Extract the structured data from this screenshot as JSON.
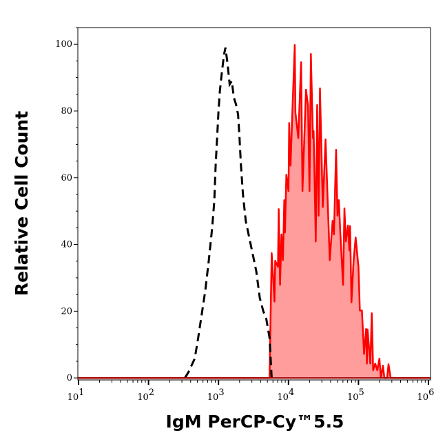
{
  "chart_data": {
    "type": "area",
    "title": "",
    "xlabel": "IgM PerCP-Cy™5.5",
    "ylabel": "Relative Cell Count",
    "x_scale": "log",
    "xlim_log10": [
      0.99,
      6.03
    ],
    "ylim": [
      -0.6,
      105
    ],
    "x_ticks": [
      {
        "base": "10",
        "exp": "1",
        "value": 10
      },
      {
        "base": "10",
        "exp": "2",
        "value": 100
      },
      {
        "base": "10",
        "exp": "3",
        "value": 1000
      },
      {
        "base": "10",
        "exp": "4",
        "value": 10000
      },
      {
        "base": "10",
        "exp": "5",
        "value": 100000
      },
      {
        "base": "10",
        "exp": "6",
        "value": 1000000
      }
    ],
    "y_ticks": [
      "0",
      "20",
      "40",
      "60",
      "80",
      "100"
    ],
    "grid": false,
    "legend": "none",
    "series": [
      {
        "style": "dashed line, unfilled",
        "color": "#000000",
        "log10_x": [
          2.52,
          2.57,
          2.66,
          2.71,
          2.76,
          2.81,
          2.86,
          2.91,
          2.94,
          2.96,
          2.98,
          3.0,
          3.02,
          3.05,
          3.08,
          3.1,
          3.13,
          3.16,
          3.19,
          3.22,
          3.25,
          3.28,
          3.3,
          3.32,
          3.35,
          3.39,
          3.44,
          3.49,
          3.54,
          3.59,
          3.64,
          3.68,
          3.73,
          3.76
        ],
        "y": [
          0,
          1.7,
          5.8,
          12,
          19,
          26,
          35,
          45,
          53,
          64,
          72,
          80,
          86,
          92,
          97,
          99,
          94,
          88,
          89,
          84,
          82,
          79,
          72,
          64,
          55,
          47,
          42,
          37,
          32,
          24,
          20,
          18,
          12,
          0
        ]
      },
      {
        "style": "solid line, filled",
        "color": "#ff0000",
        "fill": "#ff9c9c",
        "log10_x": [
          0.99,
          3.73,
          3.76,
          3.8,
          3.81,
          3.85,
          3.86,
          3.88,
          3.9,
          3.92,
          3.94,
          3.95,
          3.97,
          4.0,
          4.01,
          4.03,
          4.05,
          4.09,
          4.1,
          4.14,
          4.18,
          4.2,
          4.25,
          4.28,
          4.3,
          4.32,
          4.35,
          4.36,
          4.39,
          4.41,
          4.43,
          4.45,
          4.49,
          4.53,
          4.59,
          4.63,
          4.65,
          4.68,
          4.7,
          4.72,
          4.74,
          4.78,
          4.8,
          4.82,
          4.85,
          4.87,
          4.88,
          4.9,
          4.93,
          4.96,
          5.0,
          5.02,
          5.05,
          5.08,
          5.11,
          5.12,
          5.13,
          5.17,
          5.19,
          5.21,
          5.24,
          5.27,
          5.3,
          5.32,
          5.35,
          5.37,
          5.41,
          5.43,
          5.46,
          6.03
        ],
        "y": [
          0,
          0,
          37.4,
          22.9,
          35.1,
          33.3,
          50.6,
          27.9,
          43.0,
          35.3,
          53.3,
          43.6,
          60.9,
          56.0,
          76.4,
          63.6,
          76.7,
          99.8,
          79.5,
          71.9,
          94.6,
          56.0,
          86.4,
          81.6,
          56.0,
          97.1,
          71.9,
          74.0,
          40.9,
          81.8,
          48.6,
          86.8,
          51.2,
          71.5,
          35.3,
          47.1,
          43.0,
          68.4,
          48.6,
          53.3,
          43.6,
          27.9,
          50.8,
          40.9,
          45.7,
          38.2,
          45.5,
          22.7,
          35.1,
          42.1,
          33.3,
          20.2,
          20.2,
          7.2,
          14.7,
          4.3,
          14.5,
          4.3,
          19.4,
          2.3,
          4.3,
          2.3,
          5.8,
          0,
          3.7,
          0,
          0,
          4.1,
          0,
          0
        ]
      }
    ]
  }
}
